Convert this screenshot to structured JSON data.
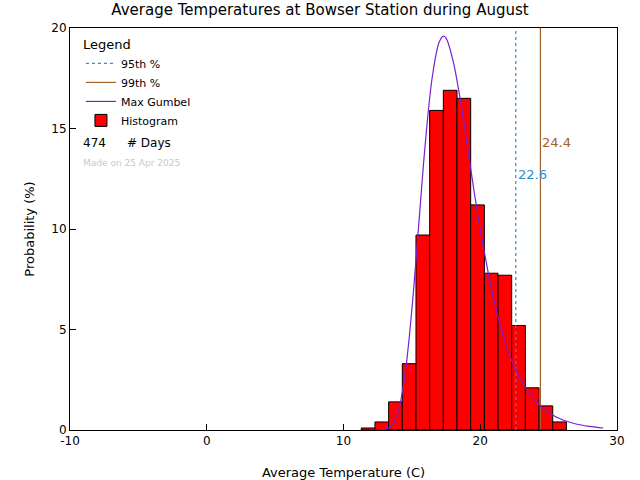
{
  "chart_data": {
    "type": "histogram",
    "title": "Average Temperatures at Bowser Station during August",
    "x_label": "Average Temperature (C)",
    "y_label": "Probability (%)",
    "xlim": [
      -10,
      30
    ],
    "xticks": [
      -10,
      0,
      10,
      20,
      30
    ],
    "ylim": [
      0,
      20
    ],
    "yticks": [
      0,
      5,
      10,
      15,
      20
    ],
    "legend": "upper left",
    "legend_title": "Legend",
    "bins": [
      11.3,
      12.3,
      13.3,
      14.3,
      15.3,
      16.3,
      17.3,
      18.3,
      19.3,
      20.3,
      21.3,
      22.3,
      23.3,
      24.3,
      25.3,
      26.3
    ],
    "values": [
      0.1,
      0.4,
      1.4,
      3.3,
      9.7,
      15.9,
      16.9,
      16.5,
      11.2,
      7.8,
      7.7,
      5.2,
      2.1,
      1.2,
      0.4
    ],
    "name": "Histogram",
    "color": "#ff0000",
    "series": [
      {
        "name": "95th %",
        "type": "vline",
        "value": 22.6,
        "color": "#2a8fd0",
        "line_style": "dotted",
        "data_labels": true
      },
      {
        "name": "99th %",
        "type": "vline",
        "value": 24.4,
        "color": "#a0602a",
        "line_style": "solid",
        "data_labels": true
      },
      {
        "name": "Max Gumbel",
        "type": "line",
        "color": "#7a1fd0",
        "line_style": "solid",
        "x": [
          12,
          13,
          13.5,
          14,
          14.5,
          15,
          15.5,
          16,
          16.5,
          17,
          17.3,
          17.5,
          18,
          18.5,
          19,
          19.5,
          20,
          21,
          22,
          23,
          24,
          25,
          26,
          27,
          28,
          29
        ],
        "values": [
          0.0,
          0.03,
          0.21,
          0.94,
          2.78,
          6.0,
          10.2,
          14.4,
          17.6,
          19.3,
          19.6,
          19.5,
          18.4,
          16.6,
          14.4,
          12.1,
          10.0,
          6.46,
          4.0,
          2.44,
          1.46,
          0.87,
          0.51,
          0.3,
          0.18,
          0.1
        ]
      }
    ],
    "annotations": [
      "474",
      "# Days",
      "Made on 25 Apr 2025"
    ]
  }
}
